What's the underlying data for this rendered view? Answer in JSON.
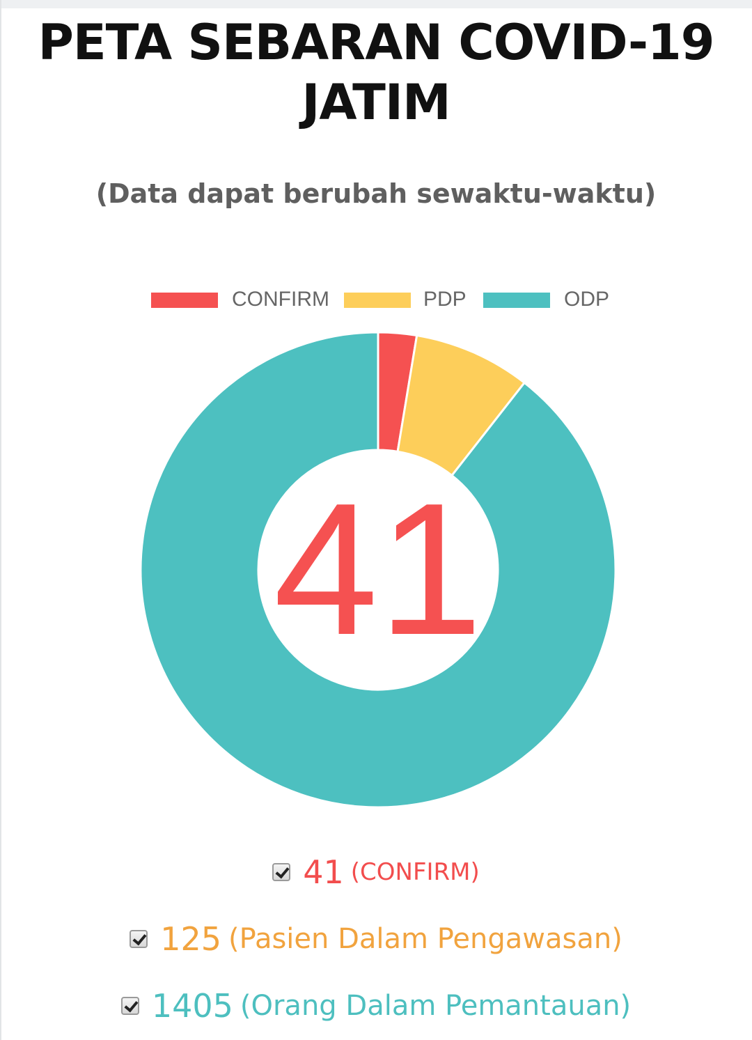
{
  "title": "PETA SEBARAN COVID-19 JATIM",
  "subtitle": "(Data dapat berubah sewaktu-waktu)",
  "center_value": "41",
  "legend": [
    {
      "label": "CONFIRM",
      "color": "#f55151"
    },
    {
      "label": "PDP",
      "color": "#fdce5a"
    },
    {
      "label": "ODP",
      "color": "#4dc0c0"
    }
  ],
  "stats": [
    {
      "value": "41",
      "label": "(CONFIRM)",
      "color": "#f24d4d",
      "checked": true
    },
    {
      "value": "125",
      "label": "(Pasien Dalam Pengawasan)",
      "color": "#f1a33e",
      "checked": true
    },
    {
      "value": "1405",
      "label": "(Orang Dalam Pemantauan)",
      "color": "#4dbfbf",
      "checked": true
    }
  ],
  "chart_data": {
    "type": "pie",
    "variant": "doughnut",
    "categories": [
      "CONFIRM",
      "PDP",
      "ODP"
    ],
    "values": [
      41,
      125,
      1405
    ],
    "colors": [
      "#f55151",
      "#fdce5a",
      "#4dc0c0"
    ],
    "legend_position": "top",
    "center_label": "41"
  }
}
